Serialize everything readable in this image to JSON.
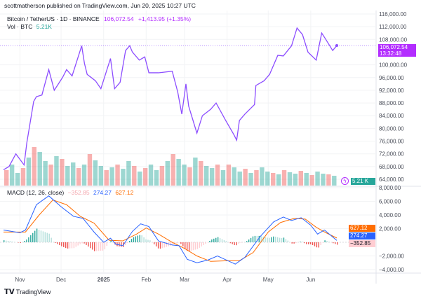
{
  "header": {
    "publisher": "scottmatherson published on TradingView.com, Jun 20, 2025 10:27 UTC"
  },
  "legend": {
    "symbol": "Bitcoin / TetherUS · 1D · BINANCE",
    "last": "106,072.54",
    "change": "+1,413.95 (+1.35%)",
    "vol_label": "Vol · BTC",
    "vol_value": "5.21K",
    "macd_label": "MACD (12, 26, close)",
    "macd_hist": "−352.85",
    "macd_line": "274.27",
    "macd_signal": "627.12"
  },
  "badges": {
    "price": "106,072.54",
    "countdown": "13:32:48",
    "vol": "5.21 K",
    "signal": "627.12",
    "macd": "274.27",
    "hist": "−352.85"
  },
  "footer": {
    "logo": "TradingView"
  },
  "colors": {
    "price": "#8c4dff",
    "macd": "#2962ff",
    "signal": "#ff6d00",
    "up": "#26a69a",
    "down": "#ef5350",
    "badge_price": "#b32dff"
  },
  "chart_data": [
    {
      "type": "line",
      "title": "Bitcoin / TetherUS · 1D · BINANCE",
      "x_start": "2024-10-20",
      "x_end": "2025-06-20",
      "ylim": [
        64000,
        116000
      ],
      "yticks": [
        "116,000.00",
        "112,000.00",
        "108,000.00",
        "100,000.00",
        "96,000.00",
        "92,000.00",
        "88,000.00",
        "84,000.00",
        "80,000.00",
        "76,000.00",
        "72,000.00",
        "68,000.00",
        "64,000.00"
      ],
      "xticks": [
        {
          "label": "Nov",
          "date": "2024-11-01"
        },
        {
          "label": "Dec",
          "date": "2024-12-01"
        },
        {
          "label": "2025",
          "date": "2025-01-01"
        },
        {
          "label": "Feb",
          "date": "2025-02-01"
        },
        {
          "label": "Mar",
          "date": "2025-03-01"
        },
        {
          "label": "Apr",
          "date": "2025-04-01"
        },
        {
          "label": "May",
          "date": "2025-05-01"
        },
        {
          "label": "Jun",
          "date": "2025-06-01"
        }
      ],
      "points": [
        [
          "2024-10-20",
          67000
        ],
        [
          "2024-10-24",
          68000
        ],
        [
          "2024-10-29",
          72000
        ],
        [
          "2024-11-04",
          68500
        ],
        [
          "2024-11-06",
          75500
        ],
        [
          "2024-11-11",
          88500
        ],
        [
          "2024-11-13",
          90000
        ],
        [
          "2024-11-17",
          90500
        ],
        [
          "2024-11-22",
          98500
        ],
        [
          "2024-11-26",
          92000
        ],
        [
          "2024-12-02",
          96000
        ],
        [
          "2024-12-05",
          98500
        ],
        [
          "2024-12-09",
          96500
        ],
        [
          "2024-12-16",
          106000
        ],
        [
          "2024-12-18",
          100500
        ],
        [
          "2024-12-20",
          97000
        ],
        [
          "2024-12-26",
          95000
        ],
        [
          "2024-12-30",
          92500
        ],
        [
          "2025-01-06",
          102000
        ],
        [
          "2025-01-09",
          92500
        ],
        [
          "2025-01-13",
          94500
        ],
        [
          "2025-01-17",
          104500
        ],
        [
          "2025-01-20",
          106000
        ],
        [
          "2025-01-22",
          104000
        ],
        [
          "2025-01-27",
          101500
        ],
        [
          "2025-01-31",
          102500
        ],
        [
          "2025-02-03",
          97500
        ],
        [
          "2025-02-10",
          97500
        ],
        [
          "2025-02-20",
          98000
        ],
        [
          "2025-02-24",
          91500
        ],
        [
          "2025-02-27",
          84500
        ],
        [
          "2025-03-02",
          94000
        ],
        [
          "2025-03-04",
          87000
        ],
        [
          "2025-03-10",
          78500
        ],
        [
          "2025-03-14",
          84000
        ],
        [
          "2025-03-20",
          86000
        ],
        [
          "2025-03-24",
          88000
        ],
        [
          "2025-03-31",
          82500
        ],
        [
          "2025-04-06",
          78000
        ],
        [
          "2025-04-08",
          76300
        ],
        [
          "2025-04-10",
          82500
        ],
        [
          "2025-04-14",
          84500
        ],
        [
          "2025-04-21",
          87500
        ],
        [
          "2025-04-22",
          93500
        ],
        [
          "2025-04-28",
          95000
        ],
        [
          "2025-05-02",
          97000
        ],
        [
          "2025-05-08",
          103000
        ],
        [
          "2025-05-12",
          102800
        ],
        [
          "2025-05-18",
          106000
        ],
        [
          "2025-05-22",
          111600
        ],
        [
          "2025-05-26",
          109500
        ],
        [
          "2025-05-30",
          104000
        ],
        [
          "2025-06-05",
          101500
        ],
        [
          "2025-06-09",
          110000
        ],
        [
          "2025-06-12",
          108000
        ],
        [
          "2025-06-17",
          104500
        ],
        [
          "2025-06-20",
          106072.54
        ]
      ]
    },
    {
      "type": "bar",
      "title": "Vol · BTC",
      "values": [
        22,
        30,
        18,
        25,
        40,
        55,
        48,
        35,
        30,
        42,
        38,
        28,
        33,
        25,
        30,
        45,
        36,
        28,
        22,
        26,
        30,
        24,
        35,
        28,
        20,
        25,
        30,
        22,
        28,
        35,
        45,
        38,
        30,
        26,
        40,
        35,
        28,
        25,
        30,
        22,
        30,
        26,
        20,
        24,
        18,
        22,
        26,
        20,
        18,
        16,
        22,
        19,
        17,
        21,
        18,
        15,
        20,
        17,
        16,
        14
      ]
    },
    {
      "type": "line",
      "title": "MACD (12, 26, close)",
      "ylim": [
        -4000,
        8000
      ],
      "yticks": [
        "8,000.00",
        "6,000.00",
        "4,000.00",
        "2,000.00",
        "−2,000.00",
        "−4,000.00"
      ],
      "series": [
        {
          "name": "274.27",
          "points": [
            [
              "2024-10-20",
              1800
            ],
            [
              "2024-11-01",
              1400
            ],
            [
              "2024-11-05",
              1800
            ],
            [
              "2024-11-13",
              5500
            ],
            [
              "2024-11-22",
              6800
            ],
            [
              "2024-12-01",
              5200
            ],
            [
              "2024-12-10",
              3800
            ],
            [
              "2024-12-17",
              3500
            ],
            [
              "2024-12-25",
              1500
            ],
            [
              "2025-01-01",
              0
            ],
            [
              "2025-01-06",
              600
            ],
            [
              "2025-01-10",
              -300
            ],
            [
              "2025-01-15",
              -500
            ],
            [
              "2025-01-22",
              1600
            ],
            [
              "2025-01-28",
              2700
            ],
            [
              "2025-02-03",
              2300
            ],
            [
              "2025-02-10",
              200
            ],
            [
              "2025-02-20",
              -400
            ],
            [
              "2025-02-25",
              -500
            ],
            [
              "2025-03-03",
              -2500
            ],
            [
              "2025-03-10",
              -3000
            ],
            [
              "2025-03-18",
              -2600
            ],
            [
              "2025-03-25",
              -2000
            ],
            [
              "2025-04-07",
              -3200
            ],
            [
              "2025-04-14",
              -2200
            ],
            [
              "2025-04-25",
              800
            ],
            [
              "2025-05-05",
              3000
            ],
            [
              "2025-05-12",
              3700
            ],
            [
              "2025-05-18",
              3200
            ],
            [
              "2025-05-25",
              3600
            ],
            [
              "2025-06-01",
              2500
            ],
            [
              "2025-06-06",
              1200
            ],
            [
              "2025-06-11",
              1800
            ],
            [
              "2025-06-20",
              274.27
            ]
          ]
        },
        {
          "name": "627.12",
          "points": [
            [
              "2024-10-20",
              1500
            ],
            [
              "2024-11-05",
              1500
            ],
            [
              "2024-11-15",
              4000
            ],
            [
              "2024-11-25",
              6200
            ],
            [
              "2024-12-05",
              5500
            ],
            [
              "2024-12-15",
              3800
            ],
            [
              "2024-12-25",
              2800
            ],
            [
              "2025-01-05",
              300
            ],
            [
              "2025-01-15",
              200
            ],
            [
              "2025-01-25",
              1200
            ],
            [
              "2025-02-01",
              2100
            ],
            [
              "2025-02-10",
              1200
            ],
            [
              "2025-02-20",
              0
            ],
            [
              "2025-03-01",
              -900
            ],
            [
              "2025-03-10",
              -2000
            ],
            [
              "2025-03-20",
              -2800
            ],
            [
              "2025-04-01",
              -2700
            ],
            [
              "2025-04-10",
              -2700
            ],
            [
              "2025-04-20",
              -1500
            ],
            [
              "2025-05-01",
              1500
            ],
            [
              "2025-05-10",
              2900
            ],
            [
              "2025-05-20",
              3500
            ],
            [
              "2025-05-28",
              3400
            ],
            [
              "2025-06-05",
              2200
            ],
            [
              "2025-06-12",
              1400
            ],
            [
              "2025-06-20",
              627.12
            ]
          ]
        }
      ]
    }
  ]
}
